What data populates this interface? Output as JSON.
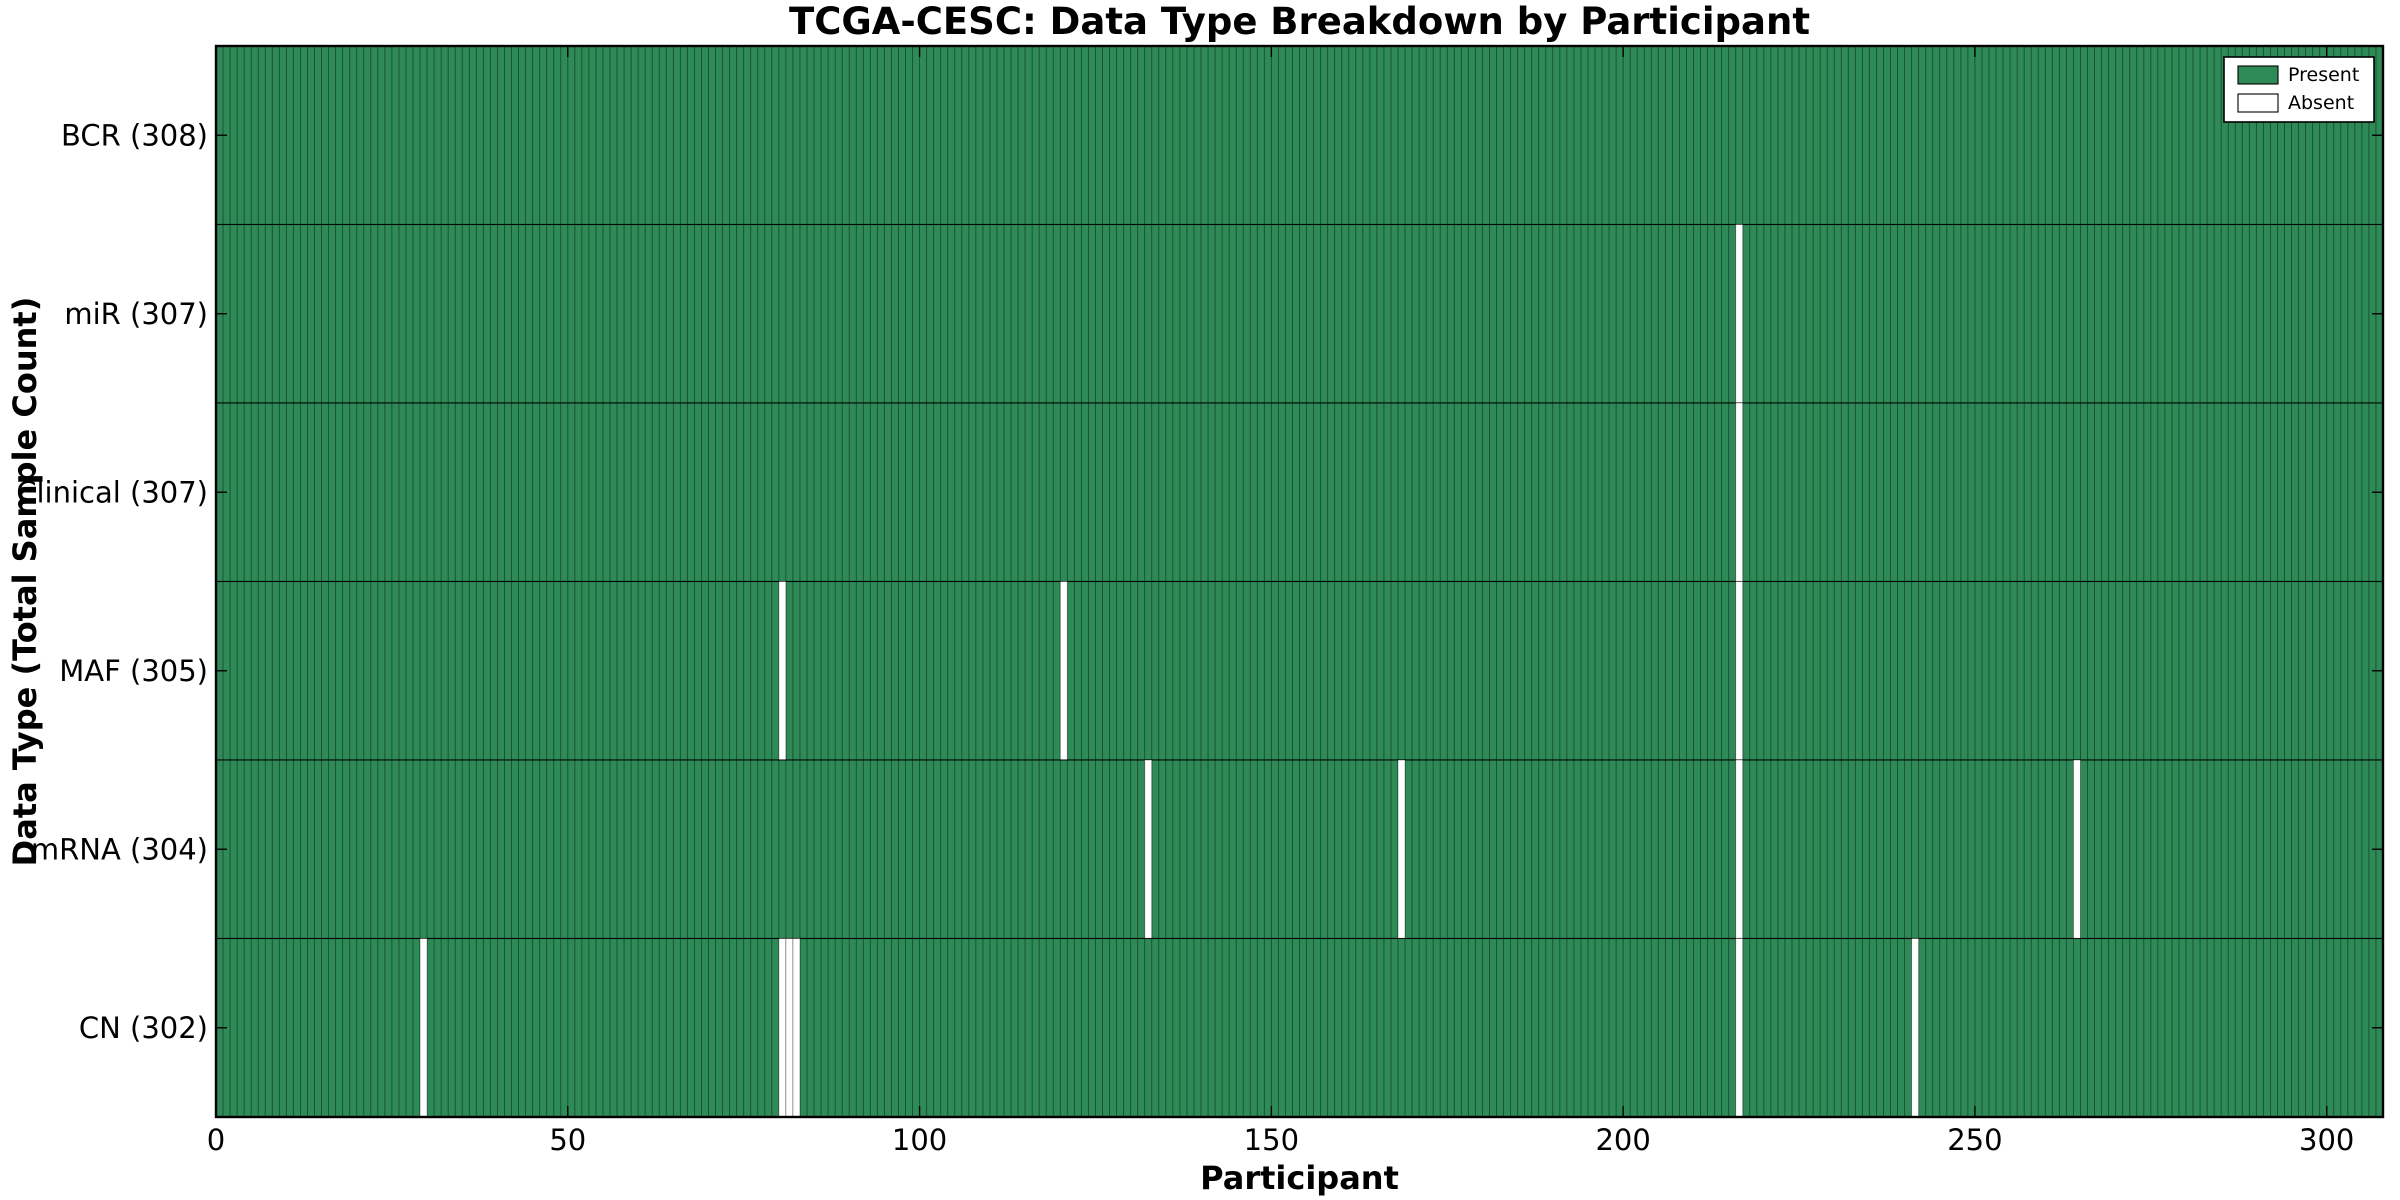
{
  "chart_data": {
    "type": "heatmap",
    "title": "TCGA-CESC: Data Type Breakdown by Participant",
    "xlabel": "Participant",
    "ylabel": "Data Type (Total Sample Count)",
    "x_axis": {
      "min": 0,
      "max": 308,
      "tick_values": [
        0,
        50,
        100,
        150,
        200,
        250,
        300
      ],
      "tick_labels": [
        "0",
        "50",
        "100",
        "150",
        "200",
        "250",
        "300"
      ]
    },
    "n_participants": 308,
    "cell_states": [
      "present",
      "absent"
    ],
    "rows_top_to_bottom": [
      {
        "data_type": "BCR",
        "label": "BCR (308)",
        "total": 308,
        "absent_participants": []
      },
      {
        "data_type": "miR",
        "label": "miR (307)",
        "total": 307,
        "absent_participants": [
          216
        ]
      },
      {
        "data_type": "Clinical",
        "label": "Clinical (307)",
        "total": 307,
        "absent_participants": [
          216
        ]
      },
      {
        "data_type": "MAF",
        "label": "MAF (305)",
        "total": 305,
        "absent_participants": [
          80,
          120,
          216
        ]
      },
      {
        "data_type": "mRNA",
        "label": "mRNA (304)",
        "total": 304,
        "absent_participants": [
          132,
          168,
          216,
          264
        ]
      },
      {
        "data_type": "CN",
        "label": "CN (302)",
        "total": 302,
        "absent_participants": [
          29,
          80,
          81,
          82,
          216,
          241
        ]
      }
    ],
    "legend": {
      "position": "upper-right",
      "entries": [
        {
          "label": "Present",
          "color": "#2e8b57"
        },
        {
          "label": "Absent",
          "color": "#ffffff"
        }
      ]
    },
    "colors": {
      "present": "#2e8b57",
      "absent": "#ffffff",
      "cell_edge": "#000000",
      "axes_edge": "#000000",
      "background": "#ffffff"
    },
    "grid": "cell-borders",
    "tick_direction": "in"
  }
}
